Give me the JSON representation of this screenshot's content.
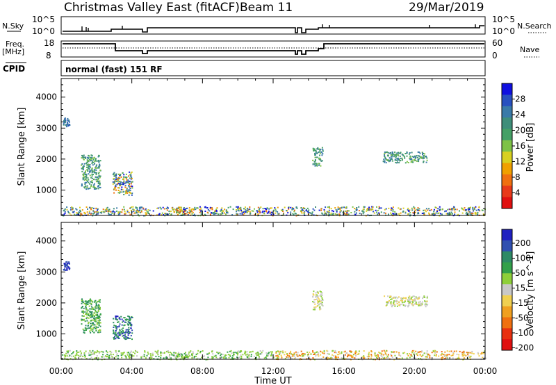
{
  "header": {
    "title": "Christmas Valley East (fitACF)",
    "beam": "Beam 11",
    "date": "29/Mar/2019"
  },
  "strip_labels": {
    "nsky": "N.Sky",
    "nsky_ticks": [
      "10^5",
      "10^0"
    ],
    "nsearch": "N.Search",
    "nsearch_ticks": [
      "10^5",
      "10^0"
    ],
    "freq": "Freq.",
    "freq_unit": "[MHz]",
    "freq_ticks": [
      "18",
      "8"
    ],
    "nave": "Nave",
    "nave_ticks": [
      "60",
      "0"
    ],
    "cpid": "CPID",
    "cpid_value": "normal (fast) 151 RF"
  },
  "chart_data": [
    {
      "type": "heatmap",
      "panel": "power",
      "ylabel": "Slant Range [km]",
      "yticks": [
        "1000",
        "2000",
        "3000",
        "4000"
      ],
      "ylim": [
        180,
        4600
      ],
      "xlim": [
        0,
        24
      ],
      "colorbar": {
        "label": "Power [dB]",
        "ticks": [
          "4",
          "8",
          "12",
          "16",
          "20",
          "24",
          "28"
        ],
        "range": [
          0,
          32
        ],
        "colors": [
          "#1010e0",
          "#2850c0",
          "#3a7aa8",
          "#3f8e7a",
          "#45a066",
          "#7ec246",
          "#d8d020",
          "#f0a000",
          "#f07010",
          "#e83a1a",
          "#e01010"
        ]
      },
      "regions": [
        {
          "t": [
            0.1,
            0.45
          ],
          "r": [
            3050,
            3350
          ],
          "level": "high"
        },
        {
          "t": [
            1.1,
            2.2
          ],
          "r": [
            1050,
            2150
          ],
          "level": "mid"
        },
        {
          "t": [
            2.9,
            4.0
          ],
          "r": [
            850,
            1600
          ],
          "level": "mixed"
        },
        {
          "t": [
            6.3,
            7.5
          ],
          "r": [
            250,
            420
          ],
          "level": "strong"
        },
        {
          "t": [
            0.0,
            24.0
          ],
          "r": [
            190,
            480
          ],
          "level": "mixed"
        },
        {
          "t": [
            14.2,
            14.8
          ],
          "r": [
            1800,
            2400
          ],
          "level": "mid"
        },
        {
          "t": [
            18.2,
            20.7
          ],
          "r": [
            1900,
            2250
          ],
          "level": "mid"
        }
      ]
    },
    {
      "type": "heatmap",
      "panel": "velocity",
      "ylabel": "Slant Range [km]",
      "yticks": [
        "1000",
        "2000",
        "3000",
        "4000"
      ],
      "ylim": [
        180,
        4600
      ],
      "xlim": [
        0,
        24
      ],
      "xticks": [
        "00:00",
        "04:00",
        "08:00",
        "12:00",
        "16:00",
        "20:00",
        "00:00"
      ],
      "xlabel": "Time UT",
      "colorbar": {
        "label": "Velocity [m s^-1]",
        "ticks": [
          "200",
          "100",
          "50",
          "15",
          "-15",
          "-50",
          "-100",
          "-200"
        ],
        "colors": [
          "#2020c0",
          "#3050b0",
          "#2e8a66",
          "#33a04a",
          "#8ecf3a",
          "#c8c8c8",
          "#f0d050",
          "#f0a020",
          "#f07010",
          "#e83010",
          "#e01010"
        ]
      },
      "regions": [
        {
          "t": [
            0.1,
            0.45
          ],
          "r": [
            3050,
            3350
          ],
          "vel": "+200"
        },
        {
          "t": [
            1.1,
            2.2
          ],
          "r": [
            1050,
            2150
          ],
          "vel": "+50"
        },
        {
          "t": [
            2.9,
            4.0
          ],
          "r": [
            850,
            1600
          ],
          "vel": "+100"
        },
        {
          "t": [
            6.3,
            7.5
          ],
          "r": [
            250,
            420
          ],
          "vel": "+15"
        },
        {
          "t": [
            0.0,
            24.0
          ],
          "r": [
            190,
            480
          ],
          "vel": "mixed"
        },
        {
          "t": [
            14.2,
            14.8
          ],
          "r": [
            1800,
            2400
          ],
          "vel": "0"
        },
        {
          "t": [
            18.2,
            20.7
          ],
          "r": [
            1900,
            2250
          ],
          "vel": "0"
        }
      ]
    }
  ]
}
